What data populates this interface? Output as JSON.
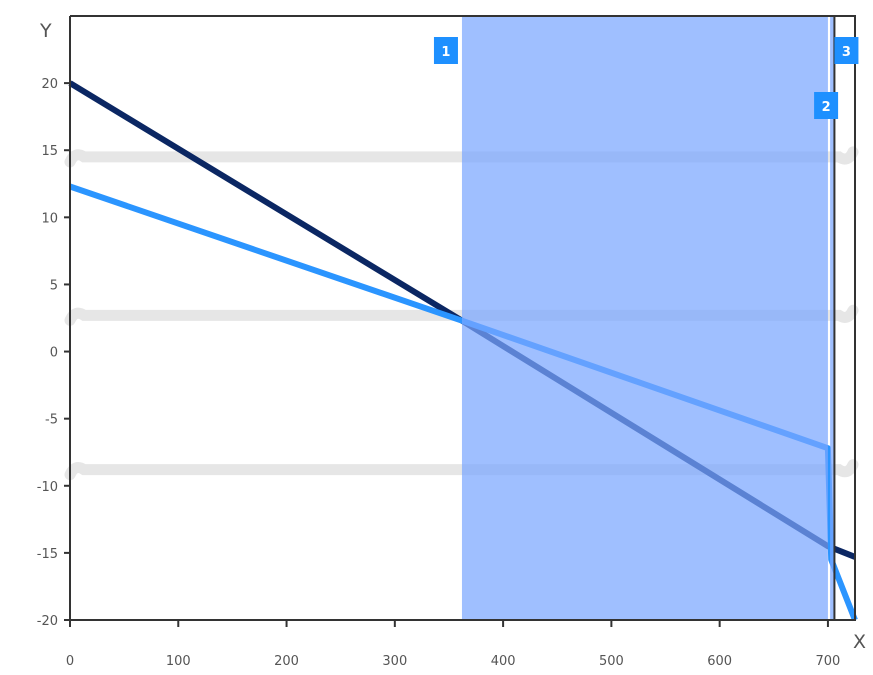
{
  "chart_data": {
    "type": "line",
    "xlabel": "X",
    "ylabel": "Y",
    "xlim": [
      0,
      725
    ],
    "ylim": [
      -20,
      25
    ],
    "x_ticks": [
      0,
      100,
      200,
      300,
      400,
      500,
      600,
      700
    ],
    "y_ticks": [
      -20,
      -15,
      -10,
      -5,
      0,
      5,
      10,
      15,
      20
    ],
    "x_tick_labels": [
      "0",
      "100",
      "200",
      "300",
      "400",
      "500",
      "600",
      "700"
    ],
    "y_tick_labels": [
      "-20",
      "-15",
      "-10",
      "-5",
      "0",
      "5",
      "10",
      "15",
      "20"
    ],
    "grid": false,
    "colors": {
      "dark_series": "#0b2763",
      "light_series": "#2b95ff",
      "band_fill": "#7aa6ff",
      "badge": "#1e90ff",
      "axis": "#333333",
      "wavy_lines": "#e6e6e6"
    },
    "series": [
      {
        "color": "#0b2763",
        "points": [
          [
            0,
            20
          ],
          [
            362,
            2.3
          ],
          [
            700,
            -14.5
          ],
          [
            725,
            -15.3
          ]
        ]
      },
      {
        "color": "#2b95ff",
        "points": [
          [
            0,
            12.3
          ],
          [
            362,
            2.3
          ],
          [
            700,
            -7.2
          ],
          [
            703,
            -15.5
          ],
          [
            725,
            -20
          ]
        ]
      }
    ],
    "wavy_levels": [
      14.5,
      2.7,
      -8.8
    ],
    "bands": [
      {
        "x_start": 362,
        "x_end": 700,
        "label": "1"
      },
      {
        "x_start": 702,
        "x_end": 706,
        "label": "2"
      },
      {
        "x_start": 706,
        "x_end": 725,
        "label": "3"
      }
    ]
  }
}
